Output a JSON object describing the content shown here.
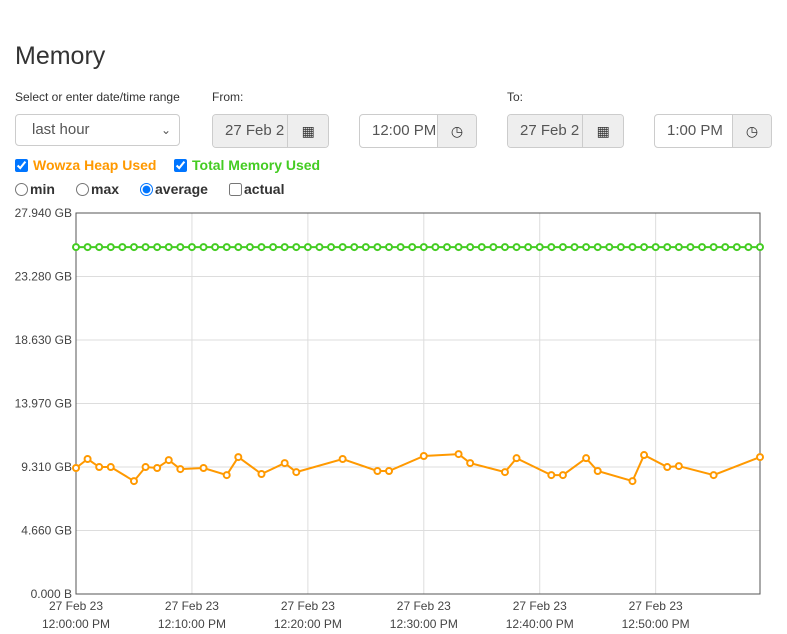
{
  "page_title": "Memory",
  "range": {
    "label": "Select or enter date/time range",
    "value": "last hour"
  },
  "from": {
    "label": "From:",
    "date": "27 Feb 2",
    "time": "12:00 PM"
  },
  "to": {
    "label": "To:",
    "date": "27 Feb 2",
    "time": "1:00 PM"
  },
  "icons": {
    "calendar": "calendar-grid-icon",
    "clock": "clock-icon"
  },
  "series_toggles": [
    {
      "label": "Wowza Heap Used",
      "checked": true,
      "color": "#ff9900"
    },
    {
      "label": "Total Memory Used",
      "checked": true,
      "color": "#44cc22"
    }
  ],
  "modes": [
    {
      "label": "min",
      "type": "radio",
      "checked": false
    },
    {
      "label": "max",
      "type": "radio",
      "checked": false
    },
    {
      "label": "average",
      "type": "radio",
      "checked": true
    },
    {
      "label": "actual",
      "type": "checkbox",
      "checked": false
    }
  ],
  "chart_data": {
    "type": "line",
    "ylim": [
      0,
      27.94
    ],
    "y_ticks": [
      "0.000 B",
      "4.660 GB",
      "9.310 GB",
      "13.970 GB",
      "18.630 GB",
      "23.280 GB",
      "27.940 GB"
    ],
    "x_ticks": [
      [
        "27 Feb 23",
        "12:00:00 PM"
      ],
      [
        "27 Feb 23",
        "12:10:00 PM"
      ],
      [
        "27 Feb 23",
        "12:20:00 PM"
      ],
      [
        "27 Feb 23",
        "12:30:00 PM"
      ],
      [
        "27 Feb 23",
        "12:40:00 PM"
      ],
      [
        "27 Feb 23",
        "12:50:00 PM"
      ]
    ],
    "x_unit": "minutes after 12:00 PM",
    "xlim": [
      0,
      59
    ],
    "grid": true,
    "series": [
      {
        "name": "Wowza Heap Used",
        "color": "#ff9900",
        "x": [
          0,
          1,
          2,
          3,
          5,
          6,
          7,
          8,
          9,
          11,
          13,
          14,
          16,
          18,
          19,
          23,
          26,
          27,
          30,
          33,
          34,
          37,
          38,
          41,
          42,
          44,
          45,
          48,
          49,
          51,
          52,
          55,
          59
        ],
        "y": [
          9.24,
          9.9,
          9.31,
          9.31,
          8.28,
          9.31,
          9.24,
          9.82,
          9.16,
          9.24,
          8.72,
          10.04,
          8.8,
          9.6,
          8.94,
          9.9,
          9.02,
          9.02,
          10.12,
          10.26,
          9.6,
          8.94,
          9.96,
          8.72,
          8.72,
          9.96,
          9.02,
          8.28,
          10.19,
          9.31,
          9.38,
          8.72,
          10.04
        ]
      },
      {
        "name": "Total Memory Used",
        "color": "#44cc22",
        "constant": 25.44,
        "x_every_minute": [
          0,
          59
        ]
      }
    ]
  }
}
